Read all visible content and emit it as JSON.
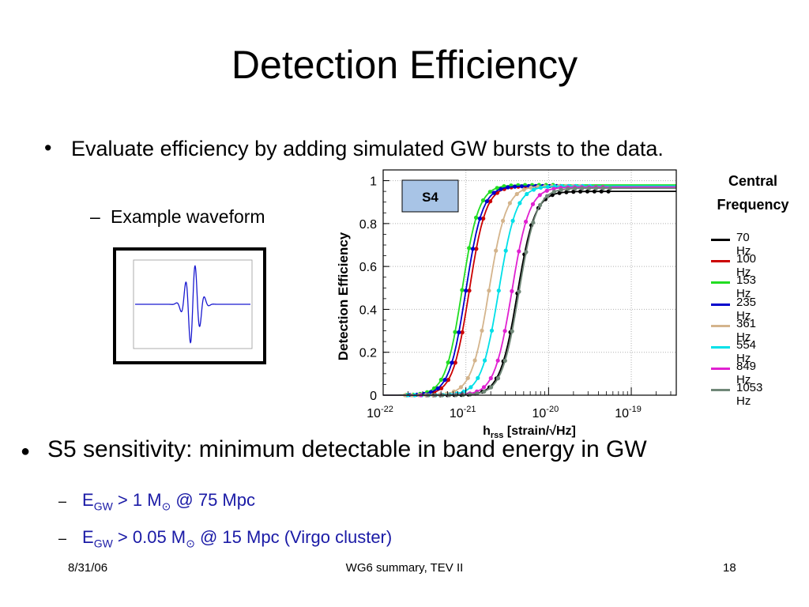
{
  "slide": {
    "title": "Detection Efficiency",
    "bullet1": "Evaluate efficiency by adding simulated GW bursts to the data.",
    "sub_bullet1": "Example waveform",
    "bullet2": "S5 sensitivity: minimum detectable in band energy in GW",
    "sub_items": [
      {
        "e": "E",
        "sub": "GW",
        "text": " > 1 M",
        "sun": "⊙",
        "rest": " @ 75 Mpc"
      },
      {
        "e": "E",
        "sub": "GW",
        "text": " > 0.05 M",
        "sun": "⊙",
        "rest": " @ 15 Mpc (Virgo cluster)"
      }
    ],
    "footer": {
      "date": "8/31/06",
      "center": "WG6 summary, TEV II",
      "page": "18"
    }
  },
  "chart_data": {
    "type": "line",
    "tag": "S4",
    "ylabel": "Detection Efficiency",
    "xlabel": "h_rss [strain/√Hz]",
    "x_scale": "log",
    "xlim": [
      1e-22,
      3.5e-19
    ],
    "ylim": [
      0,
      1.05
    ],
    "y_ticks": [
      "0",
      "0.2",
      "0.4",
      "0.6",
      "0.8",
      "1"
    ],
    "x_ticks": [
      {
        "base": "10",
        "exp": "-22"
      },
      {
        "base": "10",
        "exp": "-21"
      },
      {
        "base": "10",
        "exp": "-20"
      },
      {
        "base": "10",
        "exp": "-19"
      }
    ],
    "grid": true,
    "legend_title": [
      "Central",
      "Frequency"
    ],
    "legend_position": "right",
    "series": [
      {
        "name": "70 Hz",
        "color": "#000000",
        "x50": 4.2e-21,
        "width": 0.42,
        "max": 0.95
      },
      {
        "name": "100 Hz",
        "color": "#cc0000",
        "x50": 1.1e-21,
        "width": 0.4,
        "max": 0.975
      },
      {
        "name": "153 Hz",
        "color": "#22dd22",
        "x50": 9e-22,
        "width": 0.4,
        "max": 0.98
      },
      {
        "name": "235 Hz",
        "color": "#0000cc",
        "x50": 1e-21,
        "width": 0.4,
        "max": 0.975
      },
      {
        "name": "361 Hz",
        "color": "#d4b48c",
        "x50": 1.9e-21,
        "width": 0.42,
        "max": 0.975
      },
      {
        "name": "554 Hz",
        "color": "#00e0e8",
        "x50": 2.5e-21,
        "width": 0.42,
        "max": 0.975
      },
      {
        "name": "849 Hz",
        "color": "#e020d0",
        "x50": 3.6e-21,
        "width": 0.42,
        "max": 0.97
      },
      {
        "name": "1053 Hz",
        "color": "#708878",
        "x50": 4.4e-21,
        "width": 0.42,
        "max": 0.965
      }
    ]
  }
}
